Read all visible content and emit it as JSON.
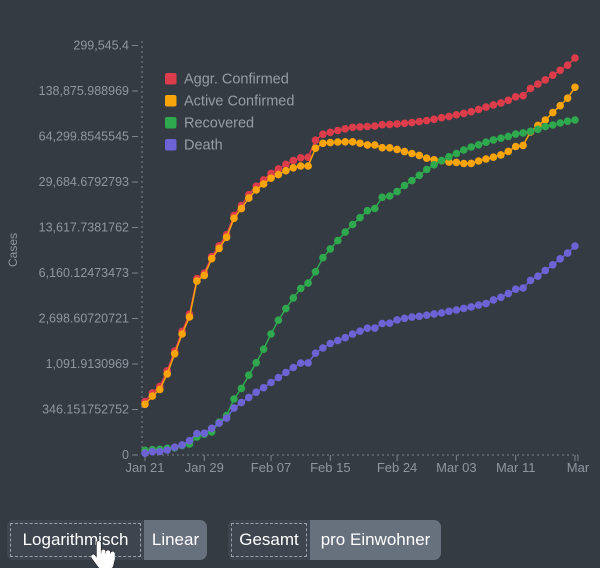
{
  "chart_data": {
    "type": "line",
    "markers": true,
    "title": "",
    "xlabel": "",
    "ylabel": "Cases",
    "scale": "logarithmic",
    "grid": false,
    "legend_position": "top-left-inside",
    "x_unit": "day",
    "x_start_label": "Jan 21",
    "x_end_label": "Mar",
    "x_tick_labels": [
      "Jan 21",
      "Jan 29",
      "Feb 07",
      "Feb 15",
      "Feb 24",
      "Mar 03",
      "Mar 11",
      "Mar"
    ],
    "x_tick_day_index": [
      0,
      8,
      17,
      25,
      34,
      42,
      50,
      58
    ],
    "y_ticks": [
      0,
      346.151752752,
      1091.9130969,
      2698.60720721,
      6160.12473473,
      13617.7381762,
      29684.6792793,
      64299.8545545,
      138875.988969,
      299545.4
    ],
    "y_tick_labels": [
      "0",
      "346.151752752",
      "1,091.9130969",
      "2,698.60720721",
      "6,160.12473473",
      "13,617.7381762",
      "29,684.6792793",
      "64,299.8545545",
      "138,875.988969",
      "299,545.4"
    ],
    "ylim": [
      0,
      299545.4
    ],
    "series": [
      {
        "name": "Aggr. Confirmed",
        "color": "#dd3d4b",
        "values": [
          440,
          555,
          654,
          941,
          1434,
          2118,
          2927,
          5578,
          6166,
          8234,
          9927,
          12038,
          16787,
          19881,
          23892,
          27635,
          30794,
          34391,
          37120,
          40150,
          42762,
          44802,
          45221,
          60368,
          66885,
          69030,
          71224,
          73258,
          75136,
          75639,
          76197,
          76819,
          78572,
          78958,
          79561,
          80406,
          81388,
          82746,
          84112,
          86011,
          88369,
          90306,
          92840,
          95120,
          97882,
          101784,
          105821,
          109795,
          113561,
          118592,
          125865,
          128343,
          145193,
          156094,
          167446,
          181527,
          197142,
          214910,
          242708
        ]
      },
      {
        "name": "Active Confirmed",
        "color": "#f9a40a",
        "values": [
          406,
          510,
          606,
          879,
          1353,
          2010,
          2784,
          5340,
          5907,
          7920,
          9492,
          11495,
          15953,
          18832,
          22548,
          25947,
          28673,
          31661,
          33698,
          36000,
          37803,
          39006,
          38953,
          52702,
          57304,
          57969,
          58589,
          58807,
          58777,
          57396,
          55773,
          55678,
          53228,
          53095,
          51705,
          49793,
          48234,
          46655,
          44529,
          43288,
          42657,
          41619,
          41452,
          40696,
          40738,
          42459,
          43905,
          45299,
          47079,
          49926,
          54247,
          55299,
          69538,
          77651,
          84972,
          96313,
          108397,
          122865,
          147866
        ]
      },
      {
        "name": "Recovered",
        "color": "#2fa94d",
        "values": [
          25,
          28,
          30,
          36,
          39,
          52,
          61,
          107,
          126,
          143,
          222,
          284,
          472,
          623,
          852,
          1124,
          1487,
          2011,
          2616,
          3244,
          3946,
          4683,
          5150,
          6295,
          8058,
          9395,
          10865,
          12583,
          14352,
          16121,
          18177,
          18890,
          22886,
          23394,
          25227,
          27905,
          30384,
          33277,
          36711,
          39782,
          42716,
          45602,
          48228,
          51170,
          53796,
          55865,
          58358,
          60694,
          62494,
          64404,
          67003,
          68324,
          70251,
          72624,
          76034,
          78088,
          80840,
          83312,
          84975
        ]
      },
      {
        "name": "Death",
        "color": "#6d63d4",
        "values": [
          9,
          17,
          18,
          26,
          42,
          56,
          82,
          131,
          133,
          171,
          213,
          259,
          362,
          426,
          492,
          564,
          634,
          719,
          806,
          906,
          1013,
          1113,
          1118,
          1371,
          1523,
          1666,
          1770,
          1868,
          2007,
          2122,
          2247,
          2251,
          2458,
          2469,
          2629,
          2708,
          2770,
          2814,
          2872,
          2941,
          2996,
          3085,
          3160,
          3254,
          3348,
          3460,
          3558,
          3802,
          3988,
          4262,
          4615,
          4720,
          5404,
          5819,
          6440,
          7126,
          7905,
          8733,
          9867
        ]
      }
    ]
  },
  "controls": {
    "scale_toggle": {
      "options": [
        {
          "label": "Logarithmisch",
          "active": true
        },
        {
          "label": "Linear",
          "active": false
        }
      ]
    },
    "mode_toggle": {
      "options": [
        {
          "label": "Gesamt",
          "active": true
        },
        {
          "label": "pro Einwohner",
          "active": false
        }
      ]
    }
  },
  "colors": {
    "background": "#343b43",
    "axis": "#7c848e",
    "tick_label": "#8e96a0",
    "legend_label": "#969da7",
    "button_active_bg": "#3e454f",
    "button_inactive_bg": "#67707d",
    "button_text": "#ffffff"
  }
}
